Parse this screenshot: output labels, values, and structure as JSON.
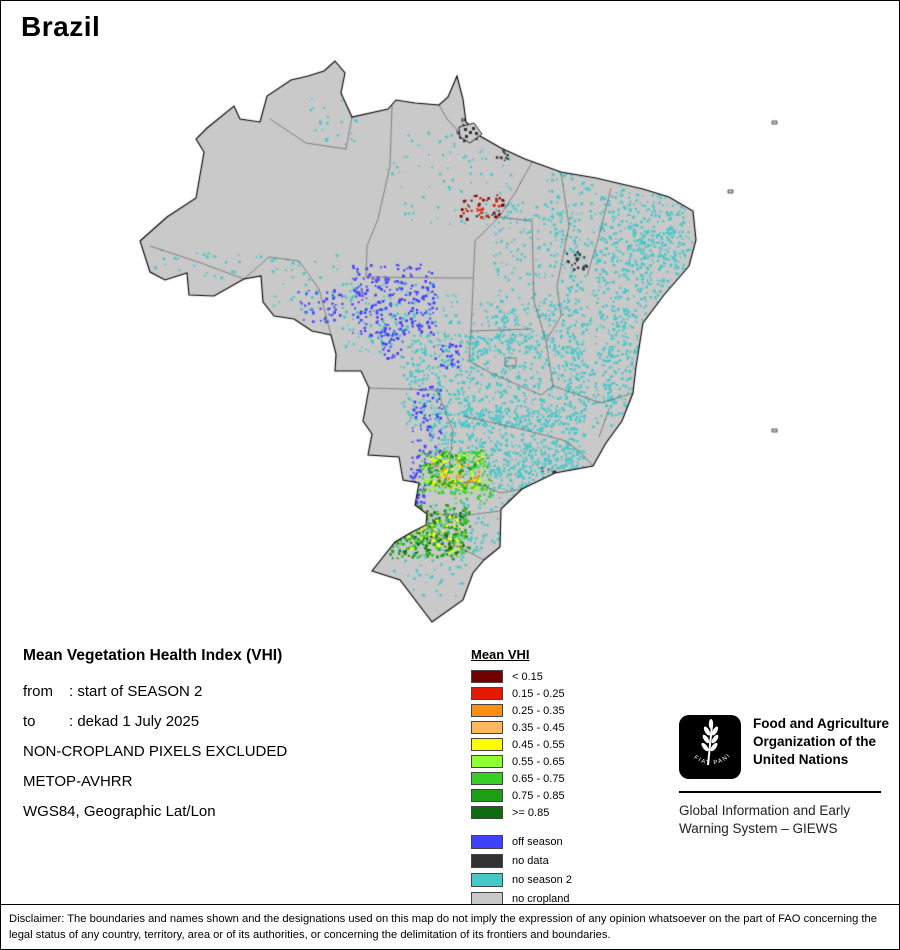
{
  "title": "Brazil",
  "info": {
    "heading": "Mean Vegetation Health Index (VHI)",
    "rows": [
      {
        "label": "from",
        "value": ": start of SEASON 2"
      },
      {
        "label": "to",
        "value": ": dekad 1 July 2025"
      }
    ],
    "lines": [
      "NON-CROPLAND PIXELS EXCLUDED",
      "METOP-AVHRR",
      "WGS84, Geographic Lat/Lon"
    ]
  },
  "legend": {
    "title": "Mean VHI",
    "items": [
      {
        "label": "< 0.15",
        "color": "#730000"
      },
      {
        "label": "0.15 - 0.25",
        "color": "#e31a00"
      },
      {
        "label": "0.25 - 0.35",
        "color": "#ff8e12"
      },
      {
        "label": "0.35 - 0.45",
        "color": "#ffb85c"
      },
      {
        "label": "0.45 - 0.55",
        "color": "#ffff00"
      },
      {
        "label": "0.55 - 0.65",
        "color": "#8dff33"
      },
      {
        "label": "0.65 - 0.75",
        "color": "#37cf26"
      },
      {
        "label": "0.75 - 0.85",
        "color": "#1d9e14"
      },
      {
        "label": ">= 0.85",
        "color": "#0f6b0f"
      }
    ],
    "extra": [
      {
        "label": "off season",
        "color": "#4040ff"
      },
      {
        "label": "no data",
        "color": "#333333"
      },
      {
        "label": "no season 2",
        "color": "#45c8c8"
      },
      {
        "label": "no cropland",
        "color": "#c9c9c9"
      }
    ]
  },
  "fao": {
    "org_name": "Food and Agriculture Organization of the United Nations",
    "giews": "Global Information and Early Warning System – GIEWS",
    "motto": "FIAT PANIS"
  },
  "map": {
    "land_color": "#c9c9c9",
    "border_color": "#6e6e6e",
    "outline_color": "#000000"
  },
  "disclaimer": "Disclaimer: The boundaries and names shown and the designations used on this map do not imply the expression of any opinion whatsoever on the part of FAO concerning the legal status of any country, territory, area or of its authorities, or concerning the delimitation of its frontiers and boundaries."
}
